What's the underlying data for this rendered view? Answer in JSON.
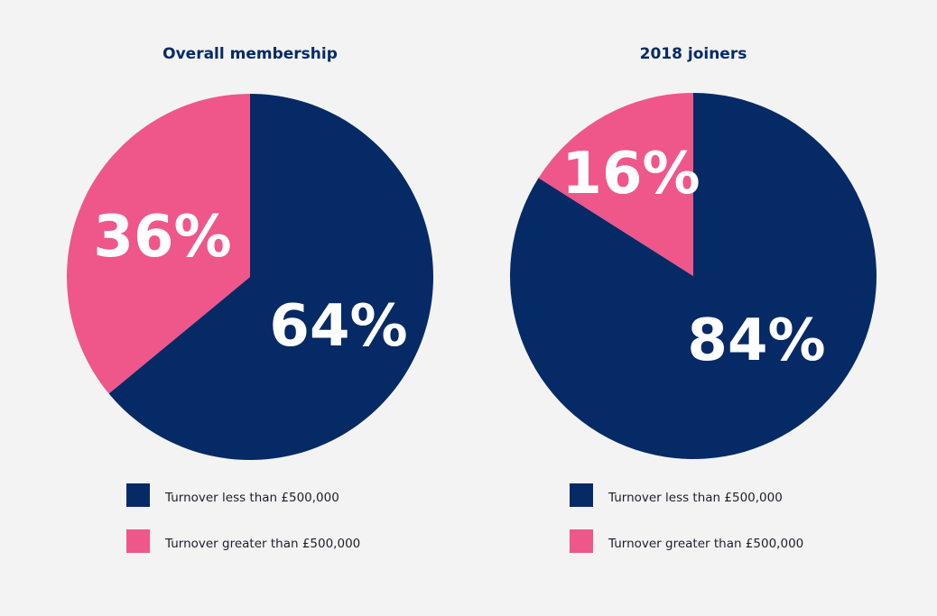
{
  "colors": {
    "background": "#f3f3f3",
    "navy": "#062a66",
    "pink": "#ef568a"
  },
  "charts": [
    {
      "title": "Overall membership",
      "legend": [
        {
          "label": "Turnover less than £500,000",
          "color": "#062a66"
        },
        {
          "label": "Turnover greater than £500,000",
          "color": "#ef568a"
        }
      ],
      "slice_labels": [
        "64%",
        "36%"
      ]
    },
    {
      "title": "2018 joiners",
      "legend": [
        {
          "label": "Turnover less than £500,000",
          "color": "#062a66"
        },
        {
          "label": "Turnover greater than £500,000",
          "color": "#ef568a"
        }
      ],
      "slice_labels": [
        "84%",
        "16%"
      ]
    }
  ],
  "chart_data": [
    {
      "type": "pie",
      "title": "Overall membership",
      "categories": [
        "Turnover less than £500,000",
        "Turnover greater than £500,000"
      ],
      "values": [
        64,
        36
      ],
      "colors": [
        "#062a66",
        "#ef568a"
      ],
      "start_angle_deg": 0,
      "direction": "clockwise",
      "legend_position": "bottom"
    },
    {
      "type": "pie",
      "title": "2018 joiners",
      "categories": [
        "Turnover less than £500,000",
        "Turnover greater than £500,000"
      ],
      "values": [
        84,
        16
      ],
      "colors": [
        "#062a66",
        "#ef568a"
      ],
      "start_angle_deg": 0,
      "direction": "clockwise",
      "legend_position": "bottom"
    }
  ]
}
